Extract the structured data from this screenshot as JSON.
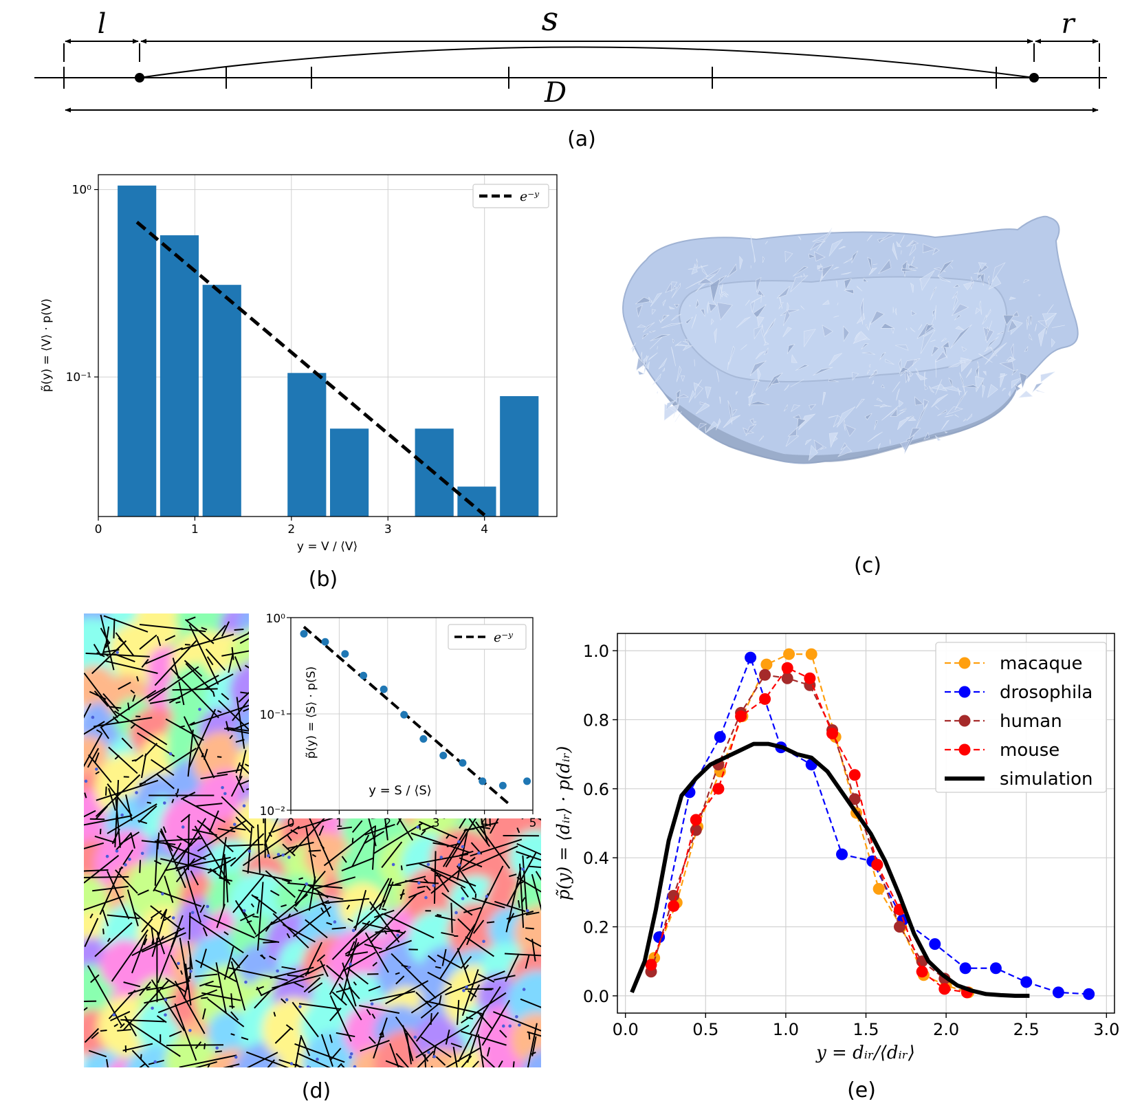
{
  "panel_a": {
    "label": "(a)",
    "sym_l": "l",
    "sym_s": "s",
    "sym_r": "r",
    "sym_D": "D"
  },
  "panel_b_label": "(b)",
  "panel_c_label": "(c)",
  "panel_d_label": "(d)",
  "panel_e_label": "(e)",
  "colors": {
    "bar_blue": "#1f77b4",
    "orange": "#ff9f0e",
    "blue": "#0000ff",
    "brown": "#a52a2a",
    "red": "#ff0000",
    "black": "#000000",
    "grid": "#d0d0d0",
    "mesh": "#b8cbe9"
  },
  "chart_data": [
    {
      "id": "b",
      "type": "bar",
      "ylog": true,
      "xlim": [
        0,
        4.75
      ],
      "ylim": [
        0.018,
        1.2
      ],
      "xticks": [
        0,
        1,
        2,
        3,
        4
      ],
      "yticks": [
        0.1,
        1
      ],
      "ytick_labels": [
        "10⁻¹",
        "10⁰"
      ],
      "xlabel": "y = V / ⟨V⟩",
      "ylabel": "p̃(y) = ⟨V⟩ · p(V)",
      "grid": true,
      "bar_width": 0.4,
      "bar_centers": [
        0.4,
        0.84,
        1.28,
        2.16,
        2.6,
        3.48,
        3.92,
        4.36
      ],
      "values": [
        1.05,
        0.57,
        0.31,
        0.105,
        0.053,
        0.053,
        0.026,
        0.079
      ],
      "line": {
        "name": "e⁻ʸ",
        "x": [
          0.4,
          4.0
        ]
      },
      "legend": "top-right"
    },
    {
      "id": "d-inset",
      "type": "scatter",
      "ylog": true,
      "xlim": [
        0,
        5
      ],
      "ylim": [
        0.01,
        1
      ],
      "xticks": [
        0,
        1,
        2,
        3,
        4,
        5
      ],
      "ytick_labels": [
        "10⁻²",
        "10⁻¹",
        "10⁰"
      ],
      "xlabel": "y = S / ⟨S⟩",
      "ylabel": "p̃(y) = ⟨S⟩ · p(S)",
      "grid": true,
      "x": [
        0.27,
        0.71,
        1.12,
        1.5,
        1.92,
        2.34,
        2.74,
        3.15,
        3.55,
        3.96,
        4.38,
        4.88
      ],
      "y": [
        0.68,
        0.56,
        0.42,
        0.25,
        0.18,
        0.098,
        0.055,
        0.037,
        0.031,
        0.02,
        0.018,
        0.02
      ],
      "line": {
        "name": "e⁻ʸ",
        "x": [
          0.27,
          4.55
        ]
      },
      "legend": "top-right"
    },
    {
      "id": "e",
      "type": "line",
      "xlim": [
        -0.05,
        3.05
      ],
      "ylim": [
        -0.05,
        1.05
      ],
      "xticks": [
        0.0,
        0.5,
        1.0,
        1.5,
        2.0,
        2.5,
        3.0
      ],
      "xtick_labels": [
        "0.0",
        "0.5",
        "1.0",
        "1.5",
        "2.0",
        "2.5",
        "3.0"
      ],
      "yticks": [
        0.0,
        0.2,
        0.4,
        0.6,
        0.8,
        1.0
      ],
      "ytick_labels": [
        "0.0",
        "0.2",
        "0.4",
        "0.6",
        "0.8",
        "1.0"
      ],
      "xlabel": "y = dᵢᵣ/⟨dᵢᵣ⟩",
      "ylabel": "p̃(y) = ⟨dᵢᵣ⟩ · p(dᵢᵣ)",
      "grid": true,
      "legend": "top-right",
      "series": [
        {
          "name": "macaque",
          "color": "#ff9f0e",
          "style": "dashed-marker",
          "x": [
            0.18,
            0.32,
            0.45,
            0.59,
            0.73,
            0.88,
            1.02,
            1.16,
            1.31,
            1.44,
            1.58,
            1.72,
            1.86,
            2.0,
            2.14
          ],
          "y": [
            0.11,
            0.27,
            0.49,
            0.65,
            0.81,
            0.96,
            0.99,
            0.99,
            0.75,
            0.53,
            0.31,
            0.2,
            0.06,
            0.03,
            0.01
          ]
        },
        {
          "name": "drosophila",
          "color": "#0000ff",
          "style": "dashed-marker",
          "x": [
            0.21,
            0.4,
            0.59,
            0.78,
            0.97,
            1.16,
            1.35,
            1.54,
            1.73,
            1.93,
            2.12,
            2.31,
            2.5,
            2.7,
            2.89
          ],
          "y": [
            0.17,
            0.59,
            0.75,
            0.98,
            0.72,
            0.67,
            0.41,
            0.39,
            0.22,
            0.15,
            0.08,
            0.08,
            0.04,
            0.01,
            0.005
          ]
        },
        {
          "name": "human",
          "color": "#a52a2a",
          "style": "dashed-marker",
          "x": [
            0.16,
            0.3,
            0.44,
            0.58,
            0.72,
            0.87,
            1.01,
            1.15,
            1.29,
            1.43,
            1.57,
            1.71,
            1.85,
            1.99,
            2.13
          ],
          "y": [
            0.07,
            0.29,
            0.48,
            0.67,
            0.82,
            0.93,
            0.92,
            0.9,
            0.77,
            0.57,
            0.38,
            0.2,
            0.1,
            0.05,
            0.01
          ]
        },
        {
          "name": "mouse",
          "color": "#ff0000",
          "style": "dashed-marker",
          "x": [
            0.16,
            0.3,
            0.44,
            0.58,
            0.72,
            0.87,
            1.01,
            1.15,
            1.29,
            1.43,
            1.57,
            1.71,
            1.85,
            1.99,
            2.13
          ],
          "y": [
            0.09,
            0.26,
            0.51,
            0.6,
            0.81,
            0.86,
            0.95,
            0.92,
            0.76,
            0.64,
            0.38,
            0.25,
            0.07,
            0.02,
            0.01
          ]
        },
        {
          "name": "simulation",
          "color": "#000000",
          "style": "thick-solid",
          "x": [
            0.04,
            0.12,
            0.19,
            0.27,
            0.35,
            0.44,
            0.53,
            0.62,
            0.71,
            0.8,
            0.89,
            0.98,
            1.07,
            1.16,
            1.26,
            1.35,
            1.44,
            1.53,
            1.62,
            1.71,
            1.8,
            1.89,
            1.98,
            2.07,
            2.16,
            2.25,
            2.34,
            2.43,
            2.52
          ],
          "y": [
            0.01,
            0.1,
            0.25,
            0.45,
            0.58,
            0.63,
            0.67,
            0.69,
            0.71,
            0.73,
            0.73,
            0.72,
            0.7,
            0.69,
            0.65,
            0.59,
            0.53,
            0.47,
            0.39,
            0.29,
            0.18,
            0.1,
            0.06,
            0.03,
            0.015,
            0.005,
            0.002,
            0.0,
            0.0
          ]
        }
      ]
    }
  ]
}
